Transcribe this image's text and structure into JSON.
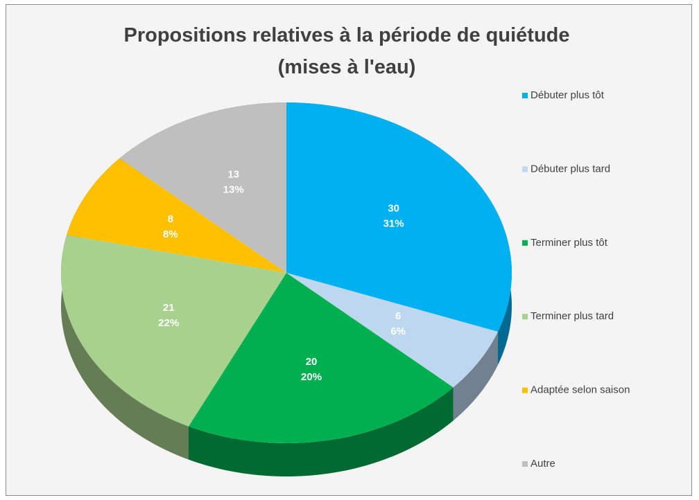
{
  "chart_data": {
    "type": "pie3d",
    "title": "Propositions relatives à la période de quiétude (mises à l'eau)",
    "categories": [
      "Débuter plus tôt",
      "Débuter plus tard",
      "Terminer plus tôt",
      "Terminer plus tard",
      "Adaptée selon saison",
      "Autre"
    ],
    "values": [
      30,
      6,
      20,
      21,
      8,
      13
    ],
    "percent_labels": [
      "31%",
      "6%",
      "20%",
      "22%",
      "8%",
      "13%"
    ],
    "colors": [
      "#00b0f0",
      "#bdd7ee",
      "#00b050",
      "#a9d18e",
      "#ffc000",
      "#bfbfbf"
    ],
    "legend": "right"
  }
}
